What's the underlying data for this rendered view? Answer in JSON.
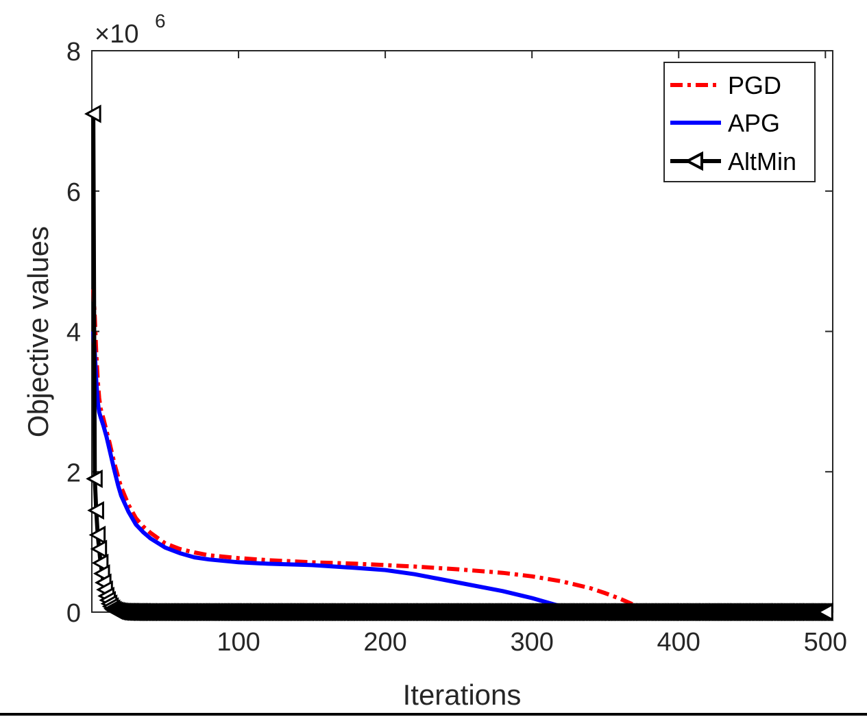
{
  "chart_data": {
    "type": "line",
    "xlabel": "Iterations",
    "ylabel": "Objective values",
    "y_multiplier": "×10",
    "y_multiplier_exp": "6",
    "xlim": [
      0,
      505
    ],
    "ylim": [
      0,
      8000000
    ],
    "x_ticks": [
      100,
      200,
      300,
      400,
      500
    ],
    "x_tick_labels": [
      "100",
      "200",
      "300",
      "400",
      "500"
    ],
    "y_ticks": [
      0,
      2000000,
      4000000,
      6000000,
      8000000
    ],
    "y_tick_labels": [
      "0",
      "2",
      "4",
      "6",
      "8"
    ],
    "grid": false,
    "legend_position": "top-right",
    "series": [
      {
        "name": "PGD",
        "color": "#ff0000",
        "style": "dash-dot",
        "x": [
          1,
          2,
          3,
          4,
          5,
          6,
          8,
          10,
          12,
          15,
          18,
          20,
          25,
          30,
          35,
          40,
          50,
          60,
          70,
          80,
          100,
          120,
          150,
          180,
          200,
          220,
          250,
          280,
          300,
          320,
          340,
          350,
          360,
          370,
          378,
          390,
          400,
          450,
          500
        ],
        "y": [
          4600000,
          4200000,
          3700000,
          3300000,
          3050000,
          2900000,
          2750000,
          2580000,
          2420000,
          2150000,
          1920000,
          1780000,
          1530000,
          1340000,
          1220000,
          1130000,
          980000,
          900000,
          850000,
          810000,
          770000,
          740000,
          710000,
          690000,
          670000,
          650000,
          610000,
          560000,
          510000,
          440000,
          340000,
          270000,
          190000,
          100000,
          30000,
          0,
          0,
          0,
          0
        ]
      },
      {
        "name": "APG",
        "color": "#0000ff",
        "style": "solid",
        "x": [
          1,
          2,
          3,
          4,
          5,
          6,
          8,
          10,
          12,
          15,
          18,
          20,
          25,
          30,
          35,
          40,
          50,
          60,
          70,
          80,
          100,
          120,
          150,
          180,
          200,
          220,
          250,
          280,
          300,
          320,
          330,
          340,
          400,
          450,
          500
        ],
        "y": [
          4000000,
          3700000,
          3300000,
          3000000,
          2850000,
          2780000,
          2650000,
          2500000,
          2320000,
          2050000,
          1800000,
          1660000,
          1430000,
          1250000,
          1140000,
          1050000,
          920000,
          840000,
          780000,
          750000,
          710000,
          690000,
          670000,
          630000,
          600000,
          540000,
          420000,
          300000,
          200000,
          80000,
          30000,
          0,
          0,
          0,
          0
        ]
      },
      {
        "name": "AltMin",
        "color": "#000000",
        "style": "solid-triangle",
        "x": [
          1,
          2,
          3,
          4,
          5,
          6,
          7,
          8,
          9,
          10,
          11,
          12,
          13,
          14,
          15,
          16,
          18,
          20,
          25,
          30,
          40,
          50,
          60,
          70,
          80,
          90,
          100,
          120,
          140,
          160,
          180,
          200,
          220,
          240,
          260,
          280,
          300,
          320,
          340,
          360,
          380,
          400,
          420,
          440,
          460,
          480,
          500
        ],
        "y": [
          7100000,
          1900000,
          1450000,
          1100000,
          900000,
          700000,
          550000,
          420000,
          320000,
          230000,
          170000,
          120000,
          80000,
          50000,
          30000,
          20000,
          10000,
          5000,
          3000,
          2000,
          1000,
          1000,
          1000,
          1000,
          1000,
          1000,
          1000,
          1000,
          1000,
          1000,
          1000,
          1000,
          1000,
          1000,
          1000,
          1000,
          1000,
          1000,
          1000,
          1000,
          1000,
          1000,
          1000,
          1000,
          1000,
          1000,
          1000
        ]
      }
    ]
  }
}
